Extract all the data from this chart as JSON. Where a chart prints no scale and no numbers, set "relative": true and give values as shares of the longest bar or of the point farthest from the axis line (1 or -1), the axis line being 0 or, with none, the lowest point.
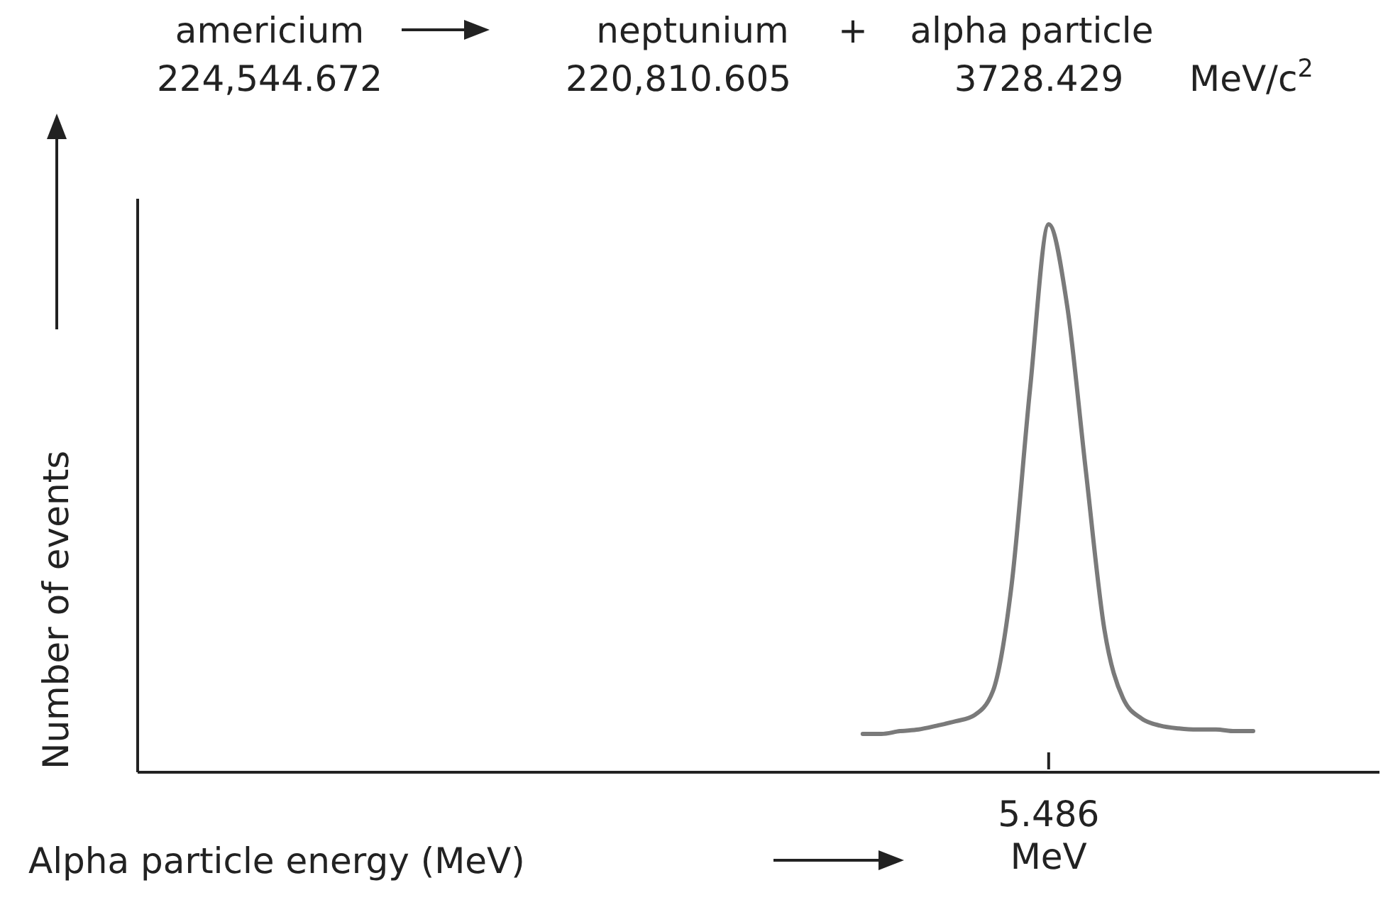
{
  "chart_data": {
    "type": "line",
    "relative": true,
    "xlabel": "Alpha particle energy (MeV)",
    "ylabel": "Number of events",
    "categories": [
      null,
      null,
      null,
      null,
      null,
      null,
      null,
      null,
      null,
      null,
      null,
      null,
      null,
      null,
      null,
      null,
      null,
      null,
      null,
      null,
      null,
      null,
      null,
      null,
      null,
      null,
      null,
      null,
      null,
      null,
      null,
      null,
      null,
      null,
      null,
      null,
      null,
      null,
      null,
      null,
      null,
      null,
      null,
      null,
      null,
      null,
      null,
      null,
      null,
      null,
      null,
      null,
      null,
      null,
      null,
      null,
      null,
      null,
      null,
      null,
      null,
      null,
      null,
      null,
      null,
      null,
      null,
      null
    ],
    "series": [
      {
        "color": "#7a7a7a",
        "values": [
          null,
          null,
          null,
          null,
          null,
          null,
          null,
          null,
          null,
          null,
          null,
          null,
          null,
          null,
          null,
          null,
          null,
          null,
          null,
          null,
          null,
          null,
          null,
          null,
          null,
          null,
          null,
          null,
          null,
          null,
          null,
          null,
          null,
          null,
          null,
          null,
          null,
          null,
          null,
          0.07,
          0.07,
          0.075,
          0.078,
          0.085,
          0.093,
          0.104,
          0.148,
          0.34,
          0.7,
          1,
          0.85,
          0.55,
          0.26,
          0.135,
          0.098,
          0.085,
          0.08,
          0.078,
          0.078,
          0.075,
          0.075,
          null,
          null,
          null,
          null,
          null,
          null,
          null
        ]
      }
    ],
    "annotations": [
      "americium",
      "224,544.672",
      "neptunium",
      "220,810.605",
      "+",
      "alpha particle",
      "3728.429",
      "MeV/c$^{2}$",
      "5.486 MeV"
    ],
    "marker": "none",
    "line_style": "solid"
  }
}
